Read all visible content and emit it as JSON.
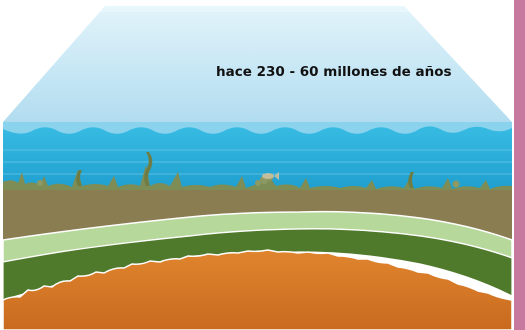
{
  "caption": "hace 230 - 60 millones de años",
  "colors": {
    "sky_top": "#d7eef8",
    "sky_bottom": "#9fd5ec",
    "water": "#2fb6df",
    "water_light": "#8fd2ec",
    "seabed_plants": "#7a8a55",
    "sediment": "#8a7c52",
    "pale_layer": "#b6d79a",
    "green_layer": "#4f7a2a",
    "core": "#d97d2b",
    "side_bar": "#c7799f"
  },
  "icons": [
    "seaweed-icon",
    "coral-icon",
    "fish-fossil-icon"
  ]
}
